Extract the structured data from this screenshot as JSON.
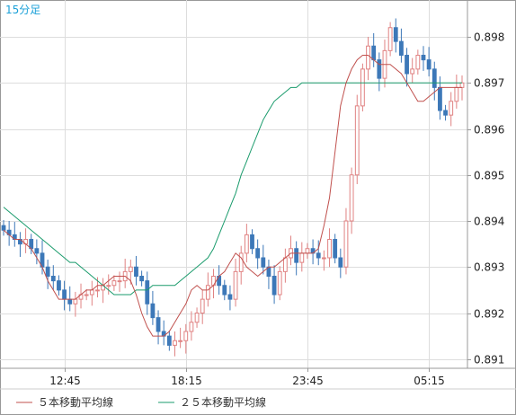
{
  "period_label": "15分足",
  "chart_data": {
    "type": "candlestick",
    "title": "",
    "xlabel": "",
    "ylabel": "",
    "ylim": [
      0.8908,
      0.8988
    ],
    "y_ticks": [
      "0.898",
      "0.897",
      "0.896",
      "0.895",
      "0.894",
      "0.893",
      "0.892",
      "0.891"
    ],
    "x_ticks": [
      "12:45",
      "18:15",
      "23:45",
      "05:15"
    ],
    "grid": true,
    "legend_position": "bottom-left",
    "colors": {
      "up": "#e08282",
      "down": "#3d78b8",
      "ma5": "#c0504d",
      "ma25": "#1a9b6c",
      "grid": "#dddddd",
      "frame": "#999999"
    },
    "series": [
      {
        "name": "５本移動平均線",
        "color": "#c0504d"
      },
      {
        "name": "２５本移動平均線",
        "color": "#1a9b6c"
      }
    ],
    "close": [
      0.8938,
      0.8937,
      0.8936,
      0.8935,
      0.8936,
      0.8934,
      0.8933,
      0.893,
      0.8928,
      0.8927,
      0.8925,
      0.8923,
      0.8922,
      0.8923,
      0.8924,
      0.8924,
      0.8925,
      0.8925,
      0.8926,
      0.8926,
      0.8927,
      0.8927,
      0.8929,
      0.893,
      0.8928,
      0.8927,
      0.8922,
      0.8919,
      0.8916,
      0.8915,
      0.8913,
      0.8914,
      0.8914,
      0.8916,
      0.8918,
      0.892,
      0.8923,
      0.8926,
      0.8928,
      0.8926,
      0.8924,
      0.8923,
      0.8929,
      0.8933,
      0.8937,
      0.8934,
      0.8932,
      0.893,
      0.8928,
      0.8924,
      0.8929,
      0.8932,
      0.8934,
      0.8931,
      0.8933,
      0.8934,
      0.8933,
      0.8932,
      0.8932,
      0.8936,
      0.8932,
      0.893,
      0.894,
      0.895,
      0.8965,
      0.8973,
      0.8978,
      0.8975,
      0.8971,
      0.8977,
      0.8982,
      0.8979,
      0.8976,
      0.8972,
      0.8973,
      0.8976,
      0.8975,
      0.8973,
      0.8969,
      0.8964,
      0.8963,
      0.8966,
      0.8969,
      0.897
    ],
    "ma5": [
      0.8938,
      0.8937,
      0.8936,
      0.8936,
      0.8935,
      0.8934,
      0.8932,
      0.893,
      0.8927,
      0.8925,
      0.8923,
      0.8923,
      0.8923,
      0.8923,
      0.8924,
      0.8925,
      0.8925,
      0.8926,
      0.8926,
      0.8927,
      0.8928,
      0.8928,
      0.8928,
      0.8927,
      0.8924,
      0.892,
      0.8917,
      0.8915,
      0.8915,
      0.8915,
      0.8916,
      0.8918,
      0.892,
      0.8922,
      0.8925,
      0.8926,
      0.8925,
      0.8925,
      0.8926,
      0.8928,
      0.8929,
      0.8931,
      0.8933,
      0.8932,
      0.893,
      0.8929,
      0.8928,
      0.8929,
      0.893,
      0.893,
      0.8931,
      0.8932,
      0.8933,
      0.8933,
      0.8933,
      0.8933,
      0.8933,
      0.8934,
      0.8939,
      0.8945,
      0.8955,
      0.8965,
      0.897,
      0.8973,
      0.8975,
      0.8976,
      0.8976,
      0.8975,
      0.8974,
      0.8974,
      0.8974,
      0.8973,
      0.8972,
      0.897,
      0.8968,
      0.8966,
      0.8966,
      0.8967,
      0.8968,
      0.8969,
      0.8969,
      0.8969,
      0.8969,
      0.8969
    ],
    "ma25": [
      0.8943,
      0.8942,
      0.8941,
      0.894,
      0.8939,
      0.8938,
      0.8937,
      0.8936,
      0.8935,
      0.8934,
      0.8933,
      0.8932,
      0.8931,
      0.8931,
      0.893,
      0.8929,
      0.8928,
      0.8927,
      0.8926,
      0.8925,
      0.8924,
      0.8924,
      0.8924,
      0.8924,
      0.8925,
      0.8925,
      0.8925,
      0.8926,
      0.8926,
      0.8926,
      0.8926,
      0.8926,
      0.8927,
      0.8928,
      0.8929,
      0.893,
      0.8931,
      0.8932,
      0.8934,
      0.8937,
      0.894,
      0.8943,
      0.8946,
      0.895,
      0.8953,
      0.8956,
      0.8959,
      0.8962,
      0.8964,
      0.8966,
      0.8967,
      0.8968,
      0.8969,
      0.8969,
      0.897,
      0.897,
      0.897,
      0.897,
      0.897,
      0.897,
      0.897,
      0.897,
      0.897,
      0.897,
      0.897,
      0.897,
      0.897,
      0.897,
      0.897,
      0.897,
      0.897,
      0.897,
      0.897,
      0.897,
      0.897,
      0.897,
      0.897,
      0.897,
      0.897,
      0.897,
      0.897,
      0.897,
      0.897,
      0.897
    ]
  }
}
